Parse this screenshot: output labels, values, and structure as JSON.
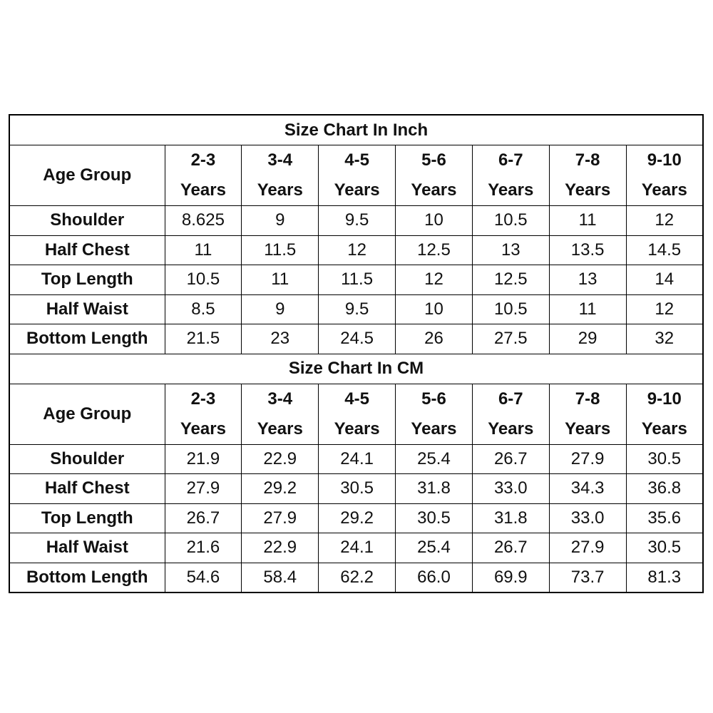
{
  "sections": [
    {
      "title": "Size Chart In Inch",
      "header": [
        "Age Group",
        "2-3 Years",
        "3-4 Years",
        "4-5 Years",
        "5-6 Years",
        "6-7 Years",
        "7-8 Years",
        "9-10 Years"
      ],
      "rows": [
        [
          "Shoulder",
          "8.625",
          "9",
          "9.5",
          "10",
          "10.5",
          "11",
          "12"
        ],
        [
          "Half Chest",
          "11",
          "11.5",
          "12",
          "12.5",
          "13",
          "13.5",
          "14.5"
        ],
        [
          "Top Length",
          "10.5",
          "11",
          "11.5",
          "12",
          "12.5",
          "13",
          "14"
        ],
        [
          "Half Waist",
          "8.5",
          "9",
          "9.5",
          "10",
          "10.5",
          "11",
          "12"
        ],
        [
          "Bottom Length",
          "21.5",
          "23",
          "24.5",
          "26",
          "27.5",
          "29",
          "32"
        ]
      ]
    },
    {
      "title": "Size Chart In CM",
      "header": [
        "Age Group",
        "2-3 Years",
        "3-4 Years",
        "4-5 Years",
        "5-6 Years",
        "6-7 Years",
        "7-8 Years",
        "9-10 Years"
      ],
      "rows": [
        [
          "Shoulder",
          "21.9",
          "22.9",
          "24.1",
          "25.4",
          "26.7",
          "27.9",
          "30.5"
        ],
        [
          "Half Chest",
          "27.9",
          "29.2",
          "30.5",
          "31.8",
          "33.0",
          "34.3",
          "36.8"
        ],
        [
          "Top Length",
          "26.7",
          "27.9",
          "29.2",
          "30.5",
          "31.8",
          "33.0",
          "35.6"
        ],
        [
          "Half Waist",
          "21.6",
          "22.9",
          "24.1",
          "25.4",
          "26.7",
          "27.9",
          "30.5"
        ],
        [
          "Bottom Length",
          "54.6",
          "58.4",
          "62.2",
          "66.0",
          "69.9",
          "73.7",
          "81.3"
        ]
      ]
    }
  ]
}
